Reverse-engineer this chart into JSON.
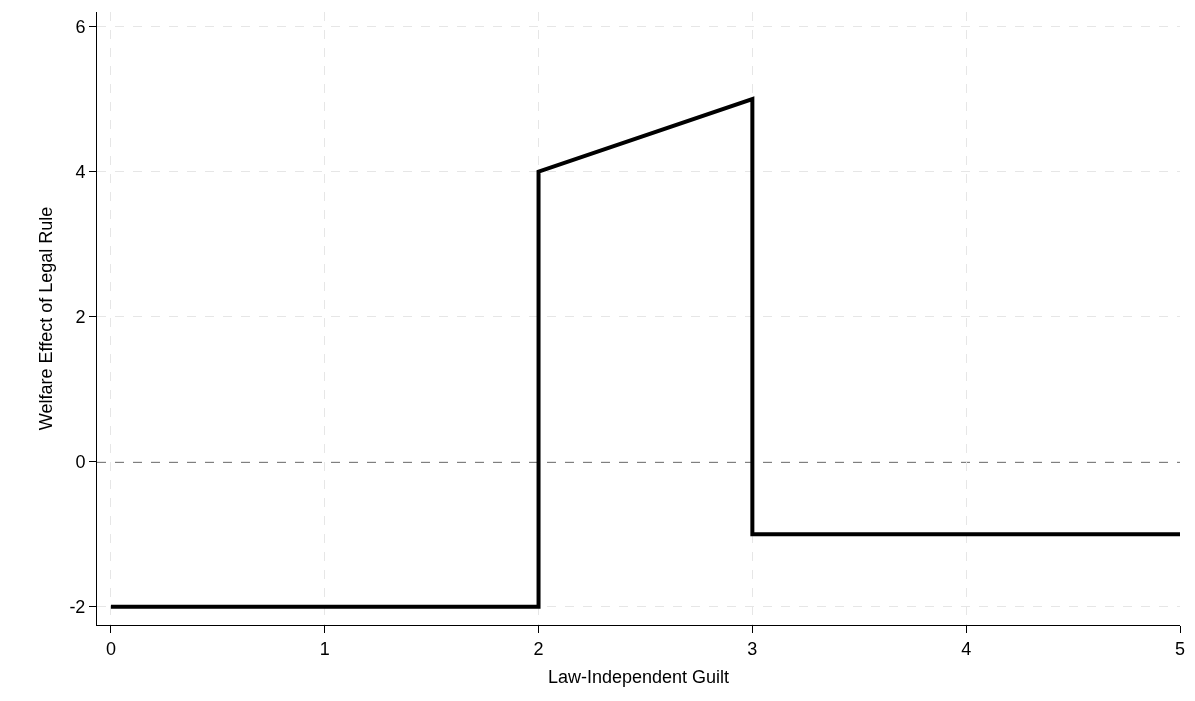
{
  "chart_data": {
    "type": "line",
    "xlabel": "Law-Independent Guilt",
    "ylabel": "Welfare Effect of Legal Rule",
    "x": [
      0,
      2,
      2,
      3,
      3,
      5
    ],
    "series": [
      {
        "color": "#000000",
        "values": [
          -2,
          -2,
          4,
          5,
          -1,
          -1
        ]
      }
    ],
    "xlim": [
      -0.065,
      5
    ],
    "xticks": [
      0,
      1,
      2,
      3,
      4,
      5
    ],
    "ylim": [
      -2.25,
      6.2
    ],
    "yticks": [
      -2,
      0,
      2,
      4,
      6
    ],
    "grid": true,
    "marker": "none",
    "line_style": "solid",
    "ref_lines": [
      {
        "axis": "y",
        "value": 0,
        "color": "#000000",
        "line_style": "dashed"
      }
    ]
  }
}
